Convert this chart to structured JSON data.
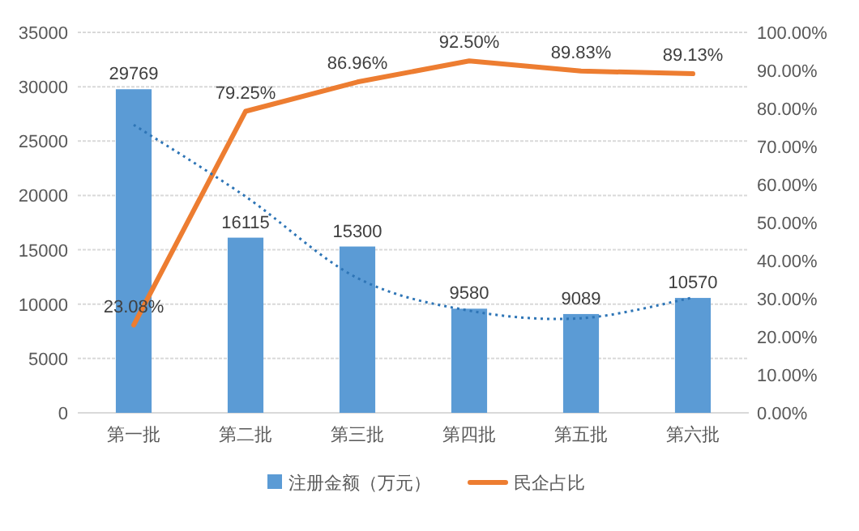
{
  "chart_data": {
    "type": "bar",
    "categories": [
      "第一批",
      "第二批",
      "第三批",
      "第四批",
      "第五批",
      "第六批"
    ],
    "series": [
      {
        "name": "注册金额（万元）",
        "color": "#5b9bd5",
        "values": [
          29769,
          16115,
          15300,
          9580,
          9089,
          10570
        ],
        "value_labels": [
          "29769",
          "16115",
          "15300",
          "9580",
          "9089",
          "10570"
        ]
      },
      {
        "name": "民企占比",
        "type": "line",
        "axis": "y2",
        "color": "#ed7d31",
        "values": [
          23.08,
          79.25,
          86.96,
          92.5,
          89.83,
          89.13
        ],
        "value_labels": [
          "23.08%",
          "79.25%",
          "86.96%",
          "92.50%",
          "89.83%",
          "89.13%"
        ]
      },
      {
        "type": "line",
        "line_style": "dotted",
        "color": "#2e75b6",
        "values": [
          26500,
          19900,
          12400,
          9400,
          8700,
          10600
        ]
      }
    ],
    "ylim": [
      0,
      35000
    ],
    "yticks": [
      0,
      5000,
      10000,
      15000,
      20000,
      25000,
      30000,
      35000
    ],
    "y2lim": [
      0,
      100
    ],
    "y2ticks": [
      {
        "value": 0,
        "label": "0.00%"
      },
      {
        "value": 10,
        "label": "10.00%"
      },
      {
        "value": 20,
        "label": "20.00%"
      },
      {
        "value": 30,
        "label": "30.00%"
      },
      {
        "value": 40,
        "label": "40.00%"
      },
      {
        "value": 50,
        "label": "50.00%"
      },
      {
        "value": 60,
        "label": "60.00%"
      },
      {
        "value": 70,
        "label": "70.00%"
      },
      {
        "value": 80,
        "label": "80.00%"
      },
      {
        "value": 90,
        "label": "90.00%"
      },
      {
        "value": 100,
        "label": "100.00%"
      }
    ],
    "grid": "y",
    "legend": "bottom"
  }
}
